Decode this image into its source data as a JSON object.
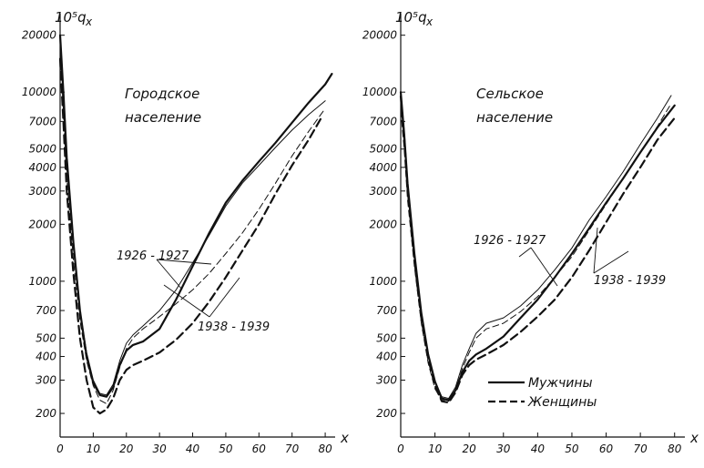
{
  "figure": {
    "colors": {
      "ink": "#111111",
      "background": "#ffffff"
    },
    "legend": {
      "position": "bottom-right of right panel",
      "entries": [
        {
          "label": "Мужчины",
          "style": "solid"
        },
        {
          "label": "Женщины",
          "style": "dashed"
        }
      ]
    }
  },
  "chart_data": [
    {
      "type": "line",
      "title_line1": "Городское",
      "title_line2": "население",
      "ylabel": "10⁵q",
      "ylabel_sub": "x",
      "xlabel": "x",
      "y_scale": "log",
      "xlim": [
        0,
        83
      ],
      "ylim": [
        150,
        26000
      ],
      "x_ticks": [
        0,
        10,
        20,
        30,
        40,
        50,
        60,
        70,
        80
      ],
      "x_tick_labels": [
        "0",
        "10",
        "20",
        "30",
        "40",
        "50",
        "60",
        "70",
        "80"
      ],
      "y_ticks": [
        200,
        300,
        400,
        500,
        700,
        1000,
        2000,
        3000,
        4000,
        5000,
        7000,
        10000,
        20000
      ],
      "y_tick_labels": [
        "200",
        "300",
        "400",
        "500",
        "700",
        "1000",
        "2000",
        "3000",
        "4000",
        "5000",
        "7000",
        "10000",
        "20000"
      ],
      "annotations": [
        {
          "text": "1926 - 1927",
          "x": 27,
          "y": 1400
        },
        {
          "text": "1938 - 1939",
          "x": 52,
          "y": 440
        }
      ],
      "series": [
        {
          "period": "1926 - 1927",
          "sex": "Мужчины",
          "style": "solid",
          "weight": "thin",
          "x": [
            0,
            1,
            2,
            4,
            6,
            8,
            10,
            12,
            14,
            16,
            18,
            20,
            22,
            25,
            30,
            35,
            40,
            45,
            50,
            55,
            60,
            65,
            70,
            75,
            80
          ],
          "y": [
            18000,
            9000,
            4000,
            1500,
            700,
            420,
            300,
            255,
            250,
            285,
            380,
            470,
            520,
            580,
            700,
            900,
            1250,
            1750,
            2500,
            3300,
            4100,
            5100,
            6300,
            7600,
            9000
          ]
        },
        {
          "period": "1926 - 1927",
          "sex": "Женщины",
          "style": "dashed",
          "weight": "thin",
          "x": [
            0,
            1,
            2,
            4,
            6,
            8,
            10,
            12,
            14,
            16,
            18,
            20,
            22,
            25,
            30,
            35,
            40,
            45,
            50,
            55,
            60,
            65,
            70,
            75,
            80
          ],
          "y": [
            16000,
            8000,
            3500,
            1300,
            620,
            380,
            280,
            235,
            225,
            265,
            350,
            440,
            500,
            560,
            650,
            760,
            900,
            1100,
            1400,
            1800,
            2400,
            3300,
            4600,
            6200,
            8200
          ]
        },
        {
          "period": "1938 - 1939",
          "sex": "Мужчины",
          "style": "solid",
          "weight": "thick",
          "x": [
            0,
            1,
            2,
            4,
            6,
            8,
            10,
            12,
            14,
            16,
            18,
            20,
            22,
            25,
            30,
            35,
            40,
            45,
            50,
            55,
            60,
            65,
            70,
            75,
            80,
            82
          ],
          "y": [
            20000,
            10000,
            4500,
            1600,
            700,
            400,
            290,
            250,
            245,
            275,
            360,
            430,
            460,
            480,
            560,
            800,
            1200,
            1800,
            2600,
            3400,
            4300,
            5400,
            6900,
            8800,
            11000,
            12500
          ]
        },
        {
          "period": "1938 - 1939",
          "sex": "Женщины",
          "style": "dashed",
          "weight": "thick",
          "x": [
            0,
            1,
            2,
            4,
            6,
            8,
            10,
            12,
            14,
            16,
            18,
            20,
            22,
            25,
            30,
            35,
            40,
            45,
            50,
            55,
            60,
            65,
            70,
            75,
            79
          ],
          "y": [
            15000,
            7000,
            3000,
            1100,
            500,
            300,
            215,
            200,
            210,
            240,
            300,
            340,
            360,
            380,
            420,
            490,
            600,
            780,
            1050,
            1450,
            2000,
            2900,
            4100,
            5600,
            7400
          ]
        }
      ]
    },
    {
      "type": "line",
      "title_line1": "Сельское",
      "title_line2": "население",
      "ylabel": "10⁵q",
      "ylabel_sub": "x",
      "xlabel": "x",
      "y_scale": "log",
      "xlim": [
        0,
        83
      ],
      "ylim": [
        150,
        26000
      ],
      "x_ticks": [
        0,
        10,
        20,
        30,
        40,
        50,
        60,
        70,
        80
      ],
      "x_tick_labels": [
        "0",
        "10",
        "20",
        "30",
        "40",
        "50",
        "60",
        "70",
        "80"
      ],
      "y_ticks": [
        200,
        300,
        400,
        500,
        700,
        1000,
        2000,
        3000,
        4000,
        5000,
        7000,
        10000,
        20000
      ],
      "y_tick_labels": [
        "200",
        "300",
        "400",
        "500",
        "700",
        "1000",
        "2000",
        "3000",
        "4000",
        "5000",
        "7000",
        "10000",
        "20000"
      ],
      "annotations": [
        {
          "text": "1926 - 1927",
          "x": 30,
          "y": 1600
        },
        {
          "text": "1938 - 1939",
          "x": 66,
          "y": 1000
        }
      ],
      "series": [
        {
          "period": "1926 - 1927",
          "sex": "Мужчины",
          "style": "solid",
          "weight": "thin",
          "x": [
            0,
            1,
            2,
            4,
            6,
            8,
            10,
            12,
            14,
            16,
            18,
            20,
            22,
            25,
            30,
            35,
            40,
            45,
            50,
            55,
            60,
            65,
            70,
            75,
            79
          ],
          "y": [
            9000,
            5500,
            3000,
            1300,
            650,
            400,
            290,
            245,
            240,
            275,
            360,
            440,
            530,
            600,
            640,
            740,
            900,
            1150,
            1500,
            2100,
            2800,
            3800,
            5300,
            7300,
            9600
          ]
        },
        {
          "period": "1926 - 1927",
          "sex": "Женщины",
          "style": "dashed",
          "weight": "thin",
          "x": [
            0,
            1,
            2,
            4,
            6,
            8,
            10,
            12,
            14,
            16,
            18,
            20,
            22,
            25,
            30,
            35,
            40,
            45,
            50,
            55,
            60,
            65,
            70,
            75,
            79
          ],
          "y": [
            8000,
            5000,
            2700,
            1200,
            600,
            370,
            270,
            235,
            232,
            265,
            345,
            420,
            500,
            560,
            600,
            690,
            830,
            1050,
            1350,
            1850,
            2550,
            3500,
            4800,
            6600,
            8700
          ]
        },
        {
          "period": "1938 - 1939",
          "sex": "Мужчины",
          "style": "solid",
          "weight": "thick",
          "x": [
            0,
            1,
            2,
            4,
            6,
            8,
            10,
            12,
            14,
            16,
            18,
            20,
            22,
            25,
            30,
            35,
            40,
            45,
            50,
            55,
            60,
            65,
            70,
            75,
            80
          ],
          "y": [
            10000,
            6000,
            3300,
            1400,
            680,
            410,
            295,
            240,
            235,
            265,
            330,
            380,
            410,
            440,
            510,
            640,
            800,
            1050,
            1400,
            1900,
            2600,
            3500,
            4800,
            6500,
            8500
          ]
        },
        {
          "period": "1938 - 1939",
          "sex": "Женщины",
          "style": "dashed",
          "weight": "thick",
          "x": [
            0,
            1,
            2,
            4,
            6,
            8,
            10,
            12,
            14,
            16,
            18,
            20,
            22,
            25,
            30,
            35,
            40,
            45,
            50,
            55,
            60,
            65,
            70,
            75,
            80
          ],
          "y": [
            9500,
            5800,
            3100,
            1300,
            640,
            390,
            280,
            232,
            228,
            258,
            320,
            360,
            385,
            410,
            460,
            540,
            650,
            800,
            1050,
            1450,
            2050,
            2900,
            4000,
            5600,
            7300
          ]
        }
      ]
    }
  ]
}
